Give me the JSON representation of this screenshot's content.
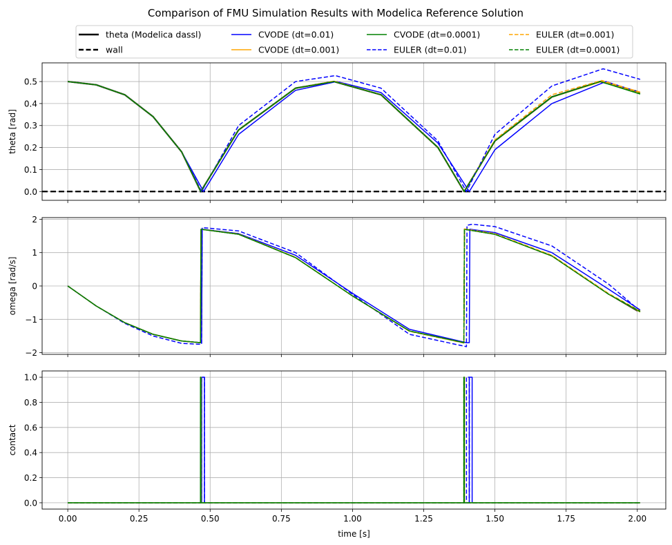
{
  "title": "Comparison of FMU Simulation Results with Modelica Reference Solution",
  "legend": [
    {
      "label": "theta (Modelica dassl)",
      "color": "#000000",
      "dash": false,
      "lw": 2.5
    },
    {
      "label": "wall",
      "color": "#000000",
      "dash": true,
      "lw": 2.5
    },
    {
      "label": "CVODE (dt=0.01)",
      "color": "#0000ff",
      "dash": false,
      "lw": 1.5
    },
    {
      "label": "CVODE (dt=0.001)",
      "color": "#ffa500",
      "dash": false,
      "lw": 1.5
    },
    {
      "label": "CVODE (dt=0.0001)",
      "color": "#008000",
      "dash": false,
      "lw": 1.5
    },
    {
      "label": "EULER (dt=0.01)",
      "color": "#0000ff",
      "dash": true,
      "lw": 1.5
    },
    {
      "label": "EULER (dt=0.001)",
      "color": "#ffa500",
      "dash": true,
      "lw": 1.5
    },
    {
      "label": "EULER (dt=0.0001)",
      "color": "#008000",
      "dash": true,
      "lw": 1.5
    }
  ],
  "chart_data": [
    {
      "type": "line",
      "ylabel": "theta [rad]",
      "xlim": [
        -0.09,
        2.1
      ],
      "ylim": [
        -0.04,
        0.585
      ],
      "yticks": [
        "0.0",
        "0.1",
        "0.2",
        "0.3",
        "0.4",
        "0.5"
      ],
      "ytick_values": [
        0.0,
        0.1,
        0.2,
        0.3,
        0.4,
        0.5
      ],
      "grid": true,
      "series": [
        {
          "label": "theta (Modelica dassl)",
          "color": "#000000",
          "dash": false,
          "lw": 2.2,
          "x": [
            0,
            0.1,
            0.2,
            0.3,
            0.4,
            0.467,
            0.6,
            0.8,
            0.935,
            1.1,
            1.3,
            1.392,
            1.5,
            1.7,
            1.87,
            2.0
          ],
          "y": [
            0.5,
            0.485,
            0.44,
            0.34,
            0.18,
            0.0,
            0.28,
            0.47,
            0.5,
            0.44,
            0.2,
            0.0,
            0.23,
            0.43,
            0.5,
            0.455
          ]
        },
        {
          "label": "wall",
          "color": "#000000",
          "dash": true,
          "lw": 2.2,
          "x": [
            -0.09,
            2.1
          ],
          "y": [
            0,
            0
          ]
        },
        {
          "label": "CVODE (dt=0.01)",
          "color": "#0000ff",
          "dash": false,
          "lw": 1.5,
          "x": [
            0,
            0.1,
            0.2,
            0.3,
            0.4,
            0.477,
            0.6,
            0.8,
            0.945,
            1.1,
            1.3,
            1.41,
            1.5,
            1.7,
            1.89,
            2.01
          ],
          "y": [
            0.5,
            0.485,
            0.44,
            0.34,
            0.18,
            0.0,
            0.26,
            0.46,
            0.5,
            0.45,
            0.22,
            0.0,
            0.19,
            0.4,
            0.5,
            0.45
          ]
        },
        {
          "label": "CVODE (dt=0.001)",
          "color": "#ffa500",
          "dash": false,
          "lw": 1.5,
          "x": [
            0,
            0.1,
            0.2,
            0.3,
            0.4,
            0.467,
            0.6,
            0.8,
            0.935,
            1.1,
            1.3,
            1.392,
            1.5,
            1.7,
            1.875,
            2.01
          ],
          "y": [
            0.5,
            0.485,
            0.44,
            0.34,
            0.18,
            0.0,
            0.28,
            0.47,
            0.5,
            0.44,
            0.2,
            0.0,
            0.23,
            0.43,
            0.5,
            0.447
          ]
        },
        {
          "label": "CVODE (dt=0.0001)",
          "color": "#008000",
          "dash": false,
          "lw": 1.5,
          "x": [
            0,
            0.1,
            0.2,
            0.3,
            0.4,
            0.467,
            0.6,
            0.8,
            0.935,
            1.1,
            1.3,
            1.392,
            1.5,
            1.7,
            1.87,
            2.01
          ],
          "y": [
            0.5,
            0.485,
            0.44,
            0.34,
            0.18,
            0.0,
            0.28,
            0.47,
            0.5,
            0.44,
            0.2,
            0.0,
            0.23,
            0.43,
            0.5,
            0.443
          ]
        },
        {
          "label": "EULER (dt=0.01)",
          "color": "#0000ff",
          "dash": true,
          "lw": 1.5,
          "x": [
            0,
            0.1,
            0.2,
            0.3,
            0.4,
            0.47,
            0.6,
            0.8,
            0.94,
            1.1,
            1.3,
            1.4,
            1.5,
            1.7,
            1.88,
            2.01
          ],
          "y": [
            0.5,
            0.485,
            0.44,
            0.34,
            0.18,
            0.0,
            0.3,
            0.5,
            0.527,
            0.47,
            0.23,
            0.0,
            0.26,
            0.48,
            0.558,
            0.51
          ]
        },
        {
          "label": "EULER (dt=0.001)",
          "color": "#ffa500",
          "dash": true,
          "lw": 1.5,
          "x": [
            0,
            0.1,
            0.2,
            0.3,
            0.4,
            0.467,
            0.6,
            0.8,
            0.935,
            1.1,
            1.3,
            1.392,
            1.5,
            1.7,
            1.875,
            2.01
          ],
          "y": [
            0.5,
            0.485,
            0.44,
            0.34,
            0.18,
            0.0,
            0.28,
            0.47,
            0.502,
            0.44,
            0.2,
            0.0,
            0.235,
            0.44,
            0.505,
            0.452
          ]
        },
        {
          "label": "EULER (dt=0.0001)",
          "color": "#008000",
          "dash": true,
          "lw": 1.5,
          "x": [
            0,
            0.1,
            0.2,
            0.3,
            0.4,
            0.467,
            0.6,
            0.8,
            0.935,
            1.1,
            1.3,
            1.392,
            1.5,
            1.7,
            1.87,
            2.01
          ],
          "y": [
            0.5,
            0.485,
            0.44,
            0.34,
            0.18,
            0.0,
            0.28,
            0.47,
            0.5,
            0.44,
            0.2,
            0.0,
            0.23,
            0.43,
            0.5,
            0.445
          ]
        }
      ]
    },
    {
      "type": "line",
      "ylabel": "omega [rad/s]",
      "xlim": [
        -0.09,
        2.1
      ],
      "ylim": [
        -2.05,
        2.05
      ],
      "yticks": [
        "−2",
        "−1",
        "0",
        "1",
        "2"
      ],
      "ytick_values": [
        -2,
        -1,
        0,
        1,
        2
      ],
      "grid": true,
      "series": [
        {
          "label": "theta (Modelica dassl)",
          "color": "#000000",
          "dash": false,
          "lw": 1.5,
          "x": [
            0,
            0.1,
            0.2,
            0.3,
            0.4,
            0.466,
            0.468,
            0.6,
            0.8,
            1.0,
            1.2,
            1.391,
            1.393,
            1.5,
            1.7,
            1.9,
            2.0
          ],
          "y": [
            0,
            -0.6,
            -1.1,
            -1.45,
            -1.65,
            -1.7,
            1.7,
            1.55,
            0.85,
            -0.3,
            -1.35,
            -1.7,
            1.7,
            1.55,
            0.9,
            -0.25,
            -0.75
          ]
        },
        {
          "label": "CVODE (dt=0.01)",
          "color": "#0000ff",
          "dash": false,
          "lw": 1.5,
          "x": [
            0,
            0.1,
            0.2,
            0.3,
            0.4,
            0.47,
            0.472,
            0.6,
            0.8,
            1.0,
            1.2,
            1.4,
            1.402,
            1.41,
            1.412,
            1.5,
            1.7,
            1.9,
            2.01
          ],
          "y": [
            0,
            -0.6,
            -1.1,
            -1.45,
            -1.65,
            -1.7,
            1.7,
            1.57,
            0.92,
            -0.22,
            -1.3,
            -1.7,
            -1.7,
            -1.7,
            1.7,
            1.6,
            1.0,
            -0.1,
            -0.72
          ]
        },
        {
          "label": "CVODE (dt=0.001)",
          "color": "#ffa500",
          "dash": false,
          "lw": 1.5,
          "x": [
            0,
            0.1,
            0.2,
            0.3,
            0.4,
            0.466,
            0.468,
            0.6,
            0.8,
            1.0,
            1.2,
            1.391,
            1.393,
            1.5,
            1.7,
            1.9,
            2.01
          ],
          "y": [
            0,
            -0.6,
            -1.1,
            -1.45,
            -1.65,
            -1.7,
            1.7,
            1.55,
            0.85,
            -0.3,
            -1.35,
            -1.7,
            1.7,
            1.55,
            0.9,
            -0.25,
            -0.78
          ]
        },
        {
          "label": "CVODE (dt=0.0001)",
          "color": "#008000",
          "dash": false,
          "lw": 1.5,
          "x": [
            0,
            0.1,
            0.2,
            0.3,
            0.4,
            0.466,
            0.468,
            0.6,
            0.8,
            1.0,
            1.2,
            1.391,
            1.393,
            1.5,
            1.7,
            1.9,
            2.01
          ],
          "y": [
            0,
            -0.6,
            -1.1,
            -1.45,
            -1.65,
            -1.7,
            1.7,
            1.55,
            0.85,
            -0.3,
            -1.35,
            -1.7,
            1.7,
            1.55,
            0.9,
            -0.25,
            -0.77
          ]
        },
        {
          "label": "EULER (dt=0.01)",
          "color": "#0000ff",
          "dash": true,
          "lw": 1.5,
          "x": [
            0,
            0.1,
            0.2,
            0.3,
            0.4,
            0.47,
            0.472,
            0.6,
            0.8,
            1.0,
            1.2,
            1.4,
            1.402,
            1.42,
            1.5,
            1.7,
            1.9,
            2.01
          ],
          "y": [
            0,
            -0.6,
            -1.12,
            -1.5,
            -1.72,
            -1.75,
            1.75,
            1.65,
            1.0,
            -0.25,
            -1.45,
            -1.82,
            1.82,
            1.85,
            1.78,
            1.2,
            0.05,
            -0.75
          ]
        },
        {
          "label": "EULER (dt=0.001)",
          "color": "#ffa500",
          "dash": true,
          "lw": 1.5,
          "x": [
            0,
            0.1,
            0.2,
            0.3,
            0.4,
            0.466,
            0.468,
            0.6,
            0.8,
            1.0,
            1.2,
            1.391,
            1.393,
            1.5,
            1.7,
            1.9,
            2.01
          ],
          "y": [
            0,
            -0.6,
            -1.1,
            -1.45,
            -1.65,
            -1.7,
            1.7,
            1.56,
            0.86,
            -0.3,
            -1.36,
            -1.71,
            1.71,
            1.57,
            0.92,
            -0.23,
            -0.75
          ]
        },
        {
          "label": "EULER (dt=0.0001)",
          "color": "#008000",
          "dash": true,
          "lw": 1.5,
          "x": [
            0,
            0.1,
            0.2,
            0.3,
            0.4,
            0.466,
            0.468,
            0.6,
            0.8,
            1.0,
            1.2,
            1.391,
            1.393,
            1.5,
            1.7,
            1.9,
            2.01
          ],
          "y": [
            0,
            -0.6,
            -1.1,
            -1.45,
            -1.65,
            -1.7,
            1.7,
            1.55,
            0.85,
            -0.3,
            -1.35,
            -1.7,
            1.7,
            1.55,
            0.9,
            -0.25,
            -0.76
          ]
        }
      ]
    },
    {
      "type": "line",
      "ylabel": "contact",
      "xlabel": "time [s]",
      "xlim": [
        -0.09,
        2.1
      ],
      "ylim": [
        -0.05,
        1.05
      ],
      "yticks": [
        "0.0",
        "0.2",
        "0.4",
        "0.6",
        "0.8",
        "1.0"
      ],
      "ytick_values": [
        0.0,
        0.2,
        0.4,
        0.6,
        0.8,
        1.0
      ],
      "xticks": [
        "0.00",
        "0.25",
        "0.50",
        "0.75",
        "1.00",
        "1.25",
        "1.50",
        "1.75",
        "2.00"
      ],
      "xtick_values": [
        0,
        0.25,
        0.5,
        0.75,
        1.0,
        1.25,
        1.5,
        1.75,
        2.0
      ],
      "grid": true,
      "series": [
        {
          "label": "CVODE (dt=0.01)",
          "color": "#0000ff",
          "dash": false,
          "lw": 1.5,
          "step": true,
          "x": [
            0,
            0.47,
            0.47,
            0.48,
            0.48,
            1.41,
            1.41,
            1.42,
            1.42,
            2.01
          ],
          "y": [
            0,
            0,
            1,
            1,
            0,
            0,
            1,
            1,
            0,
            0
          ]
        },
        {
          "label": "EULER (dt=0.01)",
          "color": "#0000ff",
          "dash": true,
          "lw": 1.5,
          "step": true,
          "x": [
            0,
            0.47,
            0.47,
            0.48,
            0.48,
            1.4,
            1.4,
            1.41,
            1.41,
            2.01
          ],
          "y": [
            0,
            0,
            1,
            1,
            0,
            0,
            1,
            1,
            0,
            0
          ]
        },
        {
          "label": "CVODE (dt=0.001)",
          "color": "#ffa500",
          "dash": false,
          "lw": 1.5,
          "step": true,
          "x": [
            0,
            0.466,
            0.466,
            0.468,
            0.468,
            1.391,
            1.391,
            1.393,
            1.393,
            2.01
          ],
          "y": [
            0,
            0,
            1,
            1,
            0,
            0,
            1,
            1,
            0,
            0
          ]
        },
        {
          "label": "EULER (dt=0.001)",
          "color": "#ffa500",
          "dash": true,
          "lw": 1.5,
          "step": true,
          "x": [
            0,
            0.466,
            0.466,
            0.468,
            0.468,
            1.391,
            1.391,
            1.393,
            1.393,
            2.01
          ],
          "y": [
            0,
            0,
            1,
            1,
            0,
            0,
            1,
            1,
            0,
            0
          ]
        },
        {
          "label": "CVODE (dt=0.0001)",
          "color": "#008000",
          "dash": false,
          "lw": 1.5,
          "step": true,
          "x": [
            0,
            0.466,
            0.466,
            0.4675,
            0.4675,
            1.391,
            1.391,
            1.3925,
            1.3925,
            2.01
          ],
          "y": [
            0,
            0,
            1,
            1,
            0,
            0,
            1,
            1,
            0,
            0
          ]
        },
        {
          "label": "EULER (dt=0.0001)",
          "color": "#008000",
          "dash": true,
          "lw": 1.5,
          "step": true,
          "x": [
            0,
            0.466,
            0.466,
            0.4675,
            0.4675,
            1.391,
            1.391,
            1.3925,
            1.3925,
            2.01
          ],
          "y": [
            0,
            0,
            1,
            1,
            0,
            0,
            1,
            1,
            0,
            0
          ]
        }
      ]
    }
  ]
}
